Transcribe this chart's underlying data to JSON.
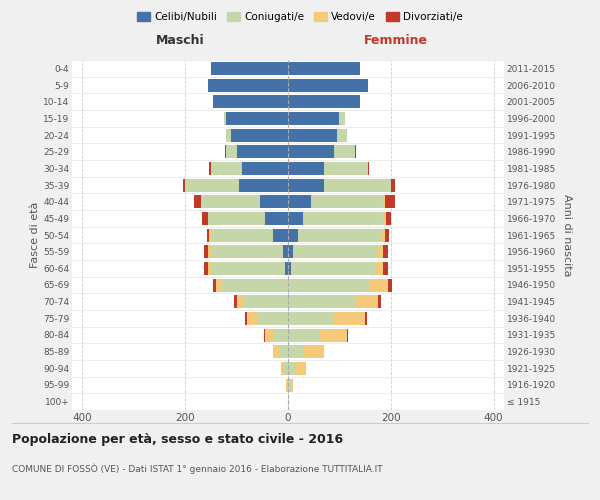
{
  "age_groups": [
    "100+",
    "95-99",
    "90-94",
    "85-89",
    "80-84",
    "75-79",
    "70-74",
    "65-69",
    "60-64",
    "55-59",
    "50-54",
    "45-49",
    "40-44",
    "35-39",
    "30-34",
    "25-29",
    "20-24",
    "15-19",
    "10-14",
    "5-9",
    "0-4"
  ],
  "birth_years": [
    "≤ 1915",
    "1916-1920",
    "1921-1925",
    "1926-1930",
    "1931-1935",
    "1936-1940",
    "1941-1945",
    "1946-1950",
    "1951-1955",
    "1956-1960",
    "1961-1965",
    "1966-1970",
    "1971-1975",
    "1976-1980",
    "1981-1985",
    "1986-1990",
    "1991-1995",
    "1996-2000",
    "2001-2005",
    "2006-2010",
    "2011-2015"
  ],
  "males": {
    "celibe": [
      0,
      0,
      0,
      0,
      0,
      0,
      0,
      0,
      5,
      10,
      30,
      45,
      55,
      95,
      90,
      100,
      110,
      120,
      145,
      155,
      150
    ],
    "coniugato": [
      0,
      2,
      8,
      15,
      30,
      60,
      85,
      130,
      145,
      140,
      120,
      110,
      115,
      105,
      60,
      20,
      10,
      5,
      0,
      0,
      0
    ],
    "vedovo": [
      0,
      2,
      5,
      15,
      15,
      20,
      15,
      10,
      5,
      5,
      3,
      0,
      0,
      0,
      0,
      0,
      0,
      0,
      0,
      0,
      0
    ],
    "divorziato": [
      0,
      0,
      0,
      0,
      2,
      3,
      5,
      5,
      8,
      8,
      5,
      12,
      12,
      5,
      3,
      2,
      0,
      0,
      0,
      0,
      0
    ]
  },
  "females": {
    "nubile": [
      0,
      0,
      0,
      0,
      0,
      0,
      0,
      0,
      5,
      10,
      20,
      30,
      45,
      70,
      70,
      90,
      95,
      100,
      140,
      155,
      140
    ],
    "coniugata": [
      0,
      5,
      15,
      30,
      60,
      90,
      130,
      160,
      165,
      165,
      160,
      155,
      140,
      130,
      85,
      40,
      20,
      10,
      0,
      0,
      0
    ],
    "vedova": [
      0,
      5,
      20,
      40,
      55,
      60,
      45,
      35,
      15,
      10,
      8,
      5,
      3,
      0,
      0,
      0,
      0,
      0,
      0,
      0,
      0
    ],
    "divorziata": [
      0,
      0,
      0,
      0,
      2,
      3,
      5,
      8,
      10,
      10,
      8,
      10,
      20,
      8,
      3,
      2,
      0,
      0,
      0,
      0,
      0
    ]
  },
  "colors": {
    "celibe": "#4472a8",
    "coniugato": "#c5d7a8",
    "vedovo": "#f5c97a",
    "divorziato": "#c0392b"
  },
  "xlim": 420,
  "title": "Popolazione per età, sesso e stato civile - 2016",
  "subtitle": "COMUNE DI FOSSÒ (VE) - Dati ISTAT 1° gennaio 2016 - Elaborazione TUTTITALIA.IT",
  "ylabel_left": "Fasce di età",
  "ylabel_right": "Anni di nascita",
  "xlabel_left": "Maschi",
  "xlabel_right": "Femmine",
  "legend_labels": [
    "Celibi/Nubili",
    "Coniugati/e",
    "Vedovi/e",
    "Divorziati/e"
  ],
  "bg_color": "#f0f0f0",
  "plot_bg": "#ffffff"
}
